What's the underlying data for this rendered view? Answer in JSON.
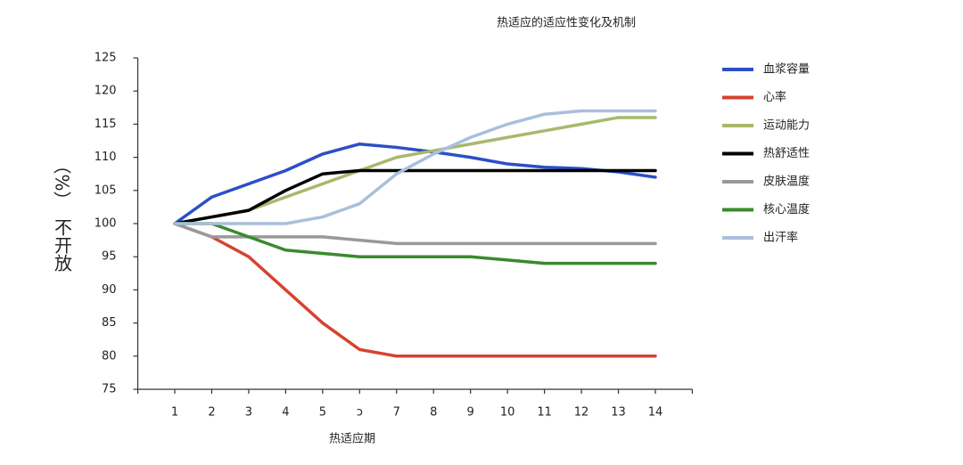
{
  "chart_data": {
    "type": "line",
    "title": "热适应的适应性变化及机制",
    "x_label": "热适应期",
    "y_unit": "（%）",
    "y_label": "不开放",
    "categories": [
      "1",
      "2",
      "3",
      "4",
      "5",
      "ɔ",
      "7",
      "8",
      "9",
      "10",
      "11",
      "12",
      "13",
      "14"
    ],
    "ylim": [
      75,
      125
    ],
    "yticks": [
      75,
      80,
      85,
      90,
      95,
      100,
      105,
      110,
      115,
      120,
      125
    ],
    "series": [
      {
        "name": "血浆容量",
        "color": "#2b4fc6",
        "values": [
          100,
          104,
          106,
          108,
          110.5,
          112,
          111.5,
          110.8,
          110,
          109,
          108.5,
          108.3,
          107.8,
          107
        ]
      },
      {
        "name": "心率",
        "color": "#d6432f",
        "values": [
          100,
          98,
          95,
          90,
          85,
          81,
          80,
          80,
          80,
          80,
          80,
          80,
          80,
          80
        ]
      },
      {
        "name": "运动能力",
        "color": "#a9b86c",
        "values": [
          100,
          101,
          102,
          104,
          106,
          108,
          110,
          111,
          112,
          113,
          114,
          115,
          116,
          116
        ]
      },
      {
        "name": "热舒适性",
        "color": "#000000",
        "values": [
          100,
          101,
          102,
          105,
          107.5,
          108,
          108,
          108,
          108,
          108,
          108,
          108,
          108,
          108
        ]
      },
      {
        "name": "皮肤温度",
        "color": "#999999",
        "values": [
          100,
          98,
          98,
          98,
          98,
          97.5,
          97,
          97,
          97,
          97,
          97,
          97,
          97,
          97
        ]
      },
      {
        "name": "核心温度",
        "color": "#3a8a2e",
        "values": [
          100,
          100,
          98,
          96,
          95.5,
          95,
          95,
          95,
          95,
          94.5,
          94,
          94,
          94,
          94
        ]
      },
      {
        "name": "出汗率",
        "color": "#a9bfdc",
        "values": [
          100,
          100,
          100,
          100,
          101,
          103,
          107.5,
          110.5,
          113,
          115,
          116.5,
          117,
          117,
          117
        ]
      }
    ]
  }
}
